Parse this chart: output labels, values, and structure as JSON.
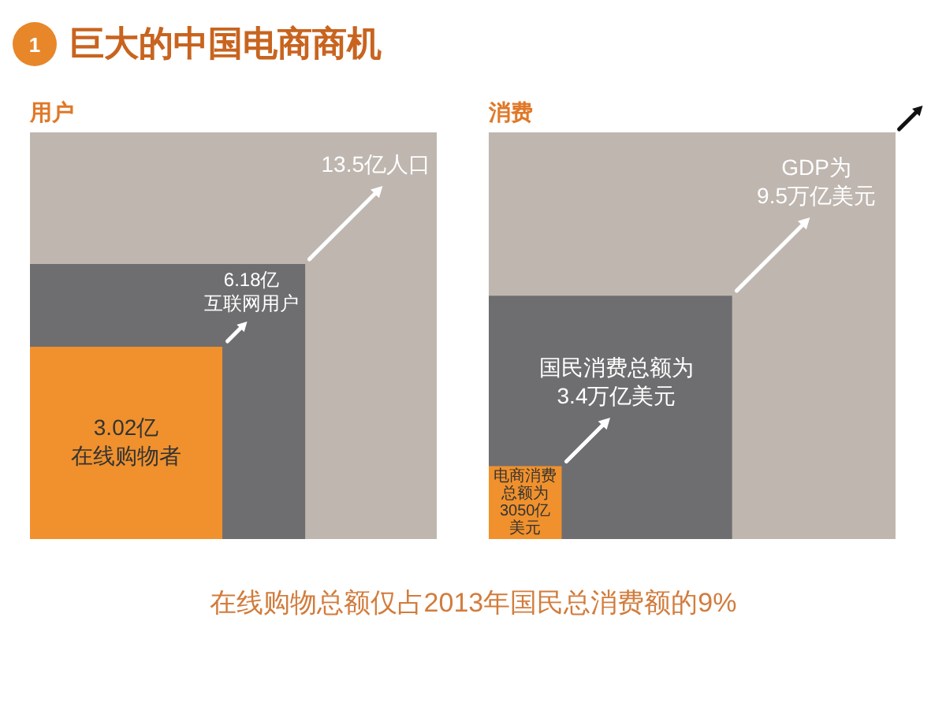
{
  "chart_data": [
    {
      "type": "other",
      "title": "巨大的中国电商商机",
      "annotations": [
        "1",
        "在线购物总额仅占2013年国民总消费额的9%"
      ]
    },
    {
      "type": "other",
      "title": "用户",
      "values": [
        13.5,
        6.18,
        3.02
      ],
      "value_labels": [
        "13.5亿人口",
        "6.18亿互联网用户",
        "3.02亿在线购物者"
      ],
      "colors": [
        "#beb6af",
        "#6e6e70",
        "#f0912d"
      ]
    },
    {
      "type": "other",
      "title": "消费",
      "values": [
        9.5,
        3.4,
        0.305
      ],
      "value_labels": [
        "GDP为9.5万亿美元",
        "国民消费总额为3.4万亿美元",
        "电商消费总额为3050亿美元"
      ],
      "colors": [
        "#beb6af",
        "#6e6e70",
        "#f0912d"
      ]
    }
  ]
}
